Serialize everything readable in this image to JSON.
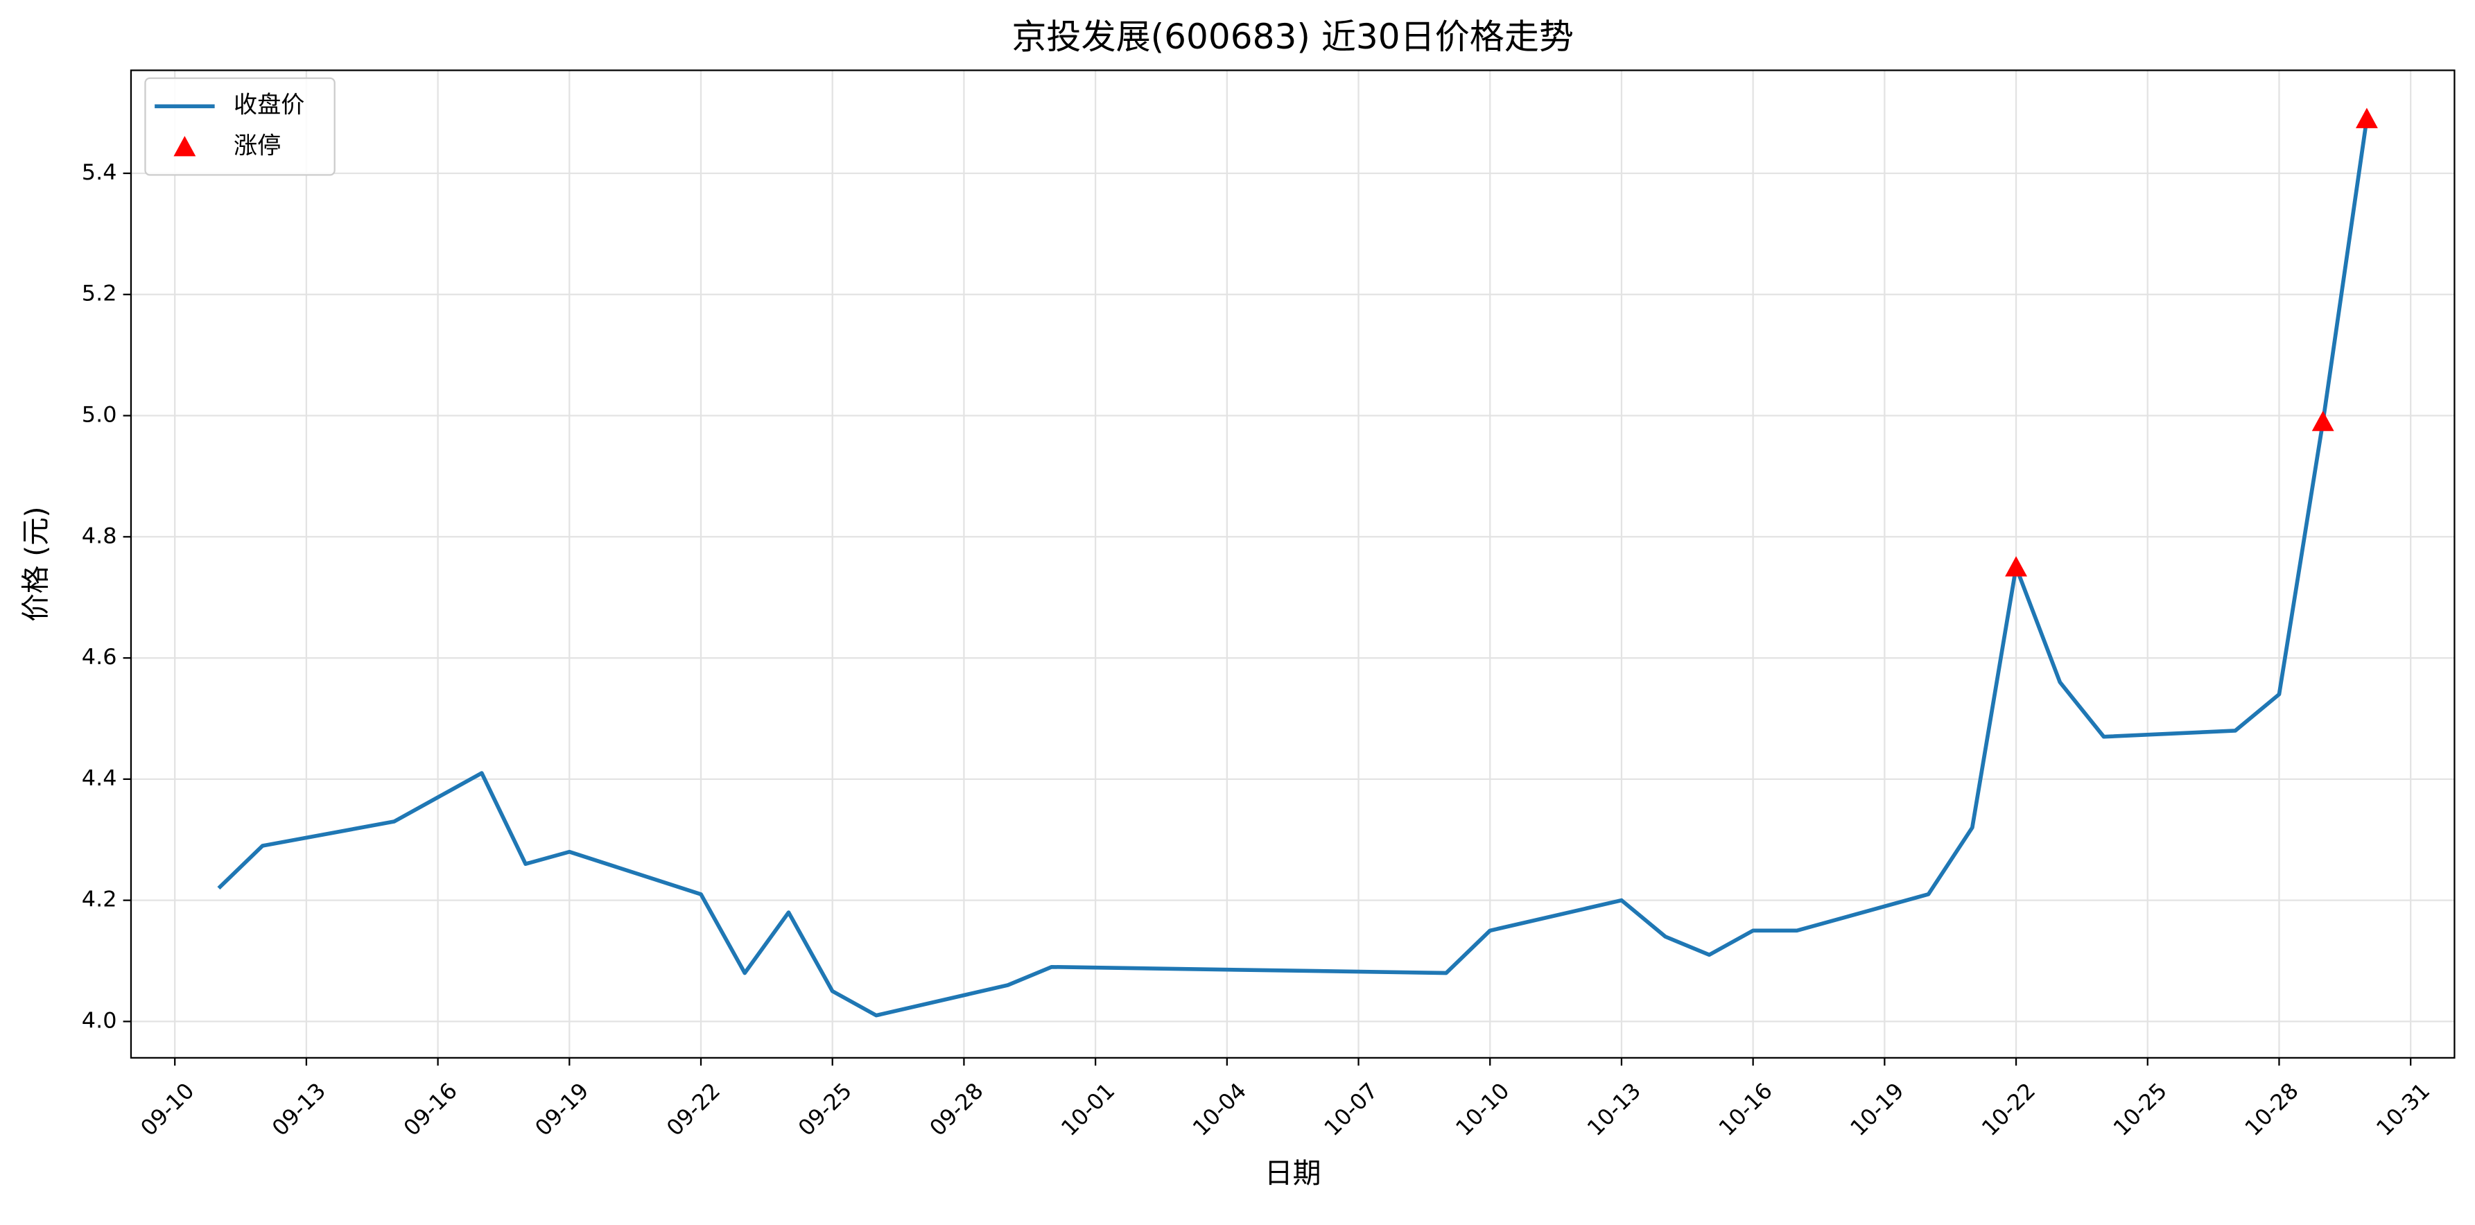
{
  "chart_data": {
    "type": "line",
    "title": "京投发展(600683) 近30日价格走势",
    "x_label": "日期",
    "y_label": "价格 (元)",
    "series": [
      {
        "name": "收盘价",
        "type": "line",
        "color": "#1f77b4",
        "x": [
          "09-11",
          "09-12",
          "09-15",
          "09-17",
          "09-18",
          "09-19",
          "09-22",
          "09-23",
          "09-24",
          "09-25",
          "09-26",
          "09-29",
          "09-30",
          "10-09",
          "10-10",
          "10-13",
          "10-14",
          "10-15",
          "10-16",
          "10-17",
          "10-20",
          "10-21",
          "10-22",
          "10-23",
          "10-24",
          "10-27",
          "10-28",
          "10-29",
          "10-30"
        ],
        "values": [
          4.22,
          4.29,
          4.33,
          4.41,
          4.26,
          4.28,
          4.21,
          4.08,
          4.18,
          4.05,
          4.01,
          4.06,
          4.09,
          4.08,
          4.15,
          4.2,
          4.14,
          4.11,
          4.15,
          4.15,
          4.21,
          4.32,
          4.75,
          4.56,
          4.47,
          4.48,
          4.54,
          4.99,
          5.49
        ]
      },
      {
        "name": "涨停",
        "type": "scatter",
        "marker": "triangle",
        "color": "#ff0000",
        "x": [
          "10-22",
          "10-29",
          "10-30"
        ],
        "values": [
          4.75,
          4.99,
          5.49
        ]
      }
    ],
    "xlim": [
      "09-09",
      "11-01"
    ],
    "xticks": [
      "09-10",
      "09-13",
      "09-16",
      "09-19",
      "09-22",
      "09-25",
      "09-28",
      "10-01",
      "10-04",
      "10-07",
      "10-10",
      "10-13",
      "10-16",
      "10-19",
      "10-22",
      "10-25",
      "10-28",
      "10-31"
    ],
    "ylim": [
      3.94,
      5.57
    ],
    "yticks": [
      {
        "value": 4,
        "label": "4.0"
      },
      4.2,
      4.4,
      4.6,
      4.8,
      {
        "value": 5,
        "label": "5.0"
      },
      5.2,
      5.4
    ],
    "grid": true,
    "legend": "upper-left"
  }
}
